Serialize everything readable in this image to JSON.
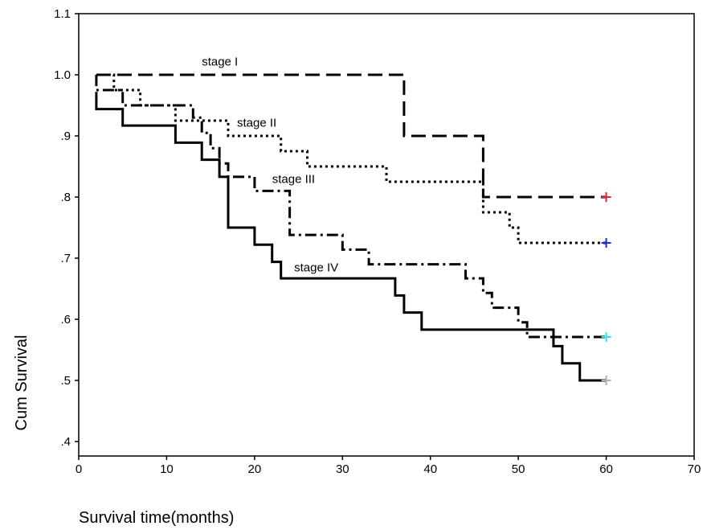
{
  "chart_data": {
    "type": "line",
    "step": true,
    "xlabel": "Survival time(months)",
    "ylabel": "Cum Survival",
    "xlim": [
      0,
      70
    ],
    "ylim": [
      0.4,
      1.1
    ],
    "x_ticks": [
      0,
      10,
      20,
      30,
      40,
      50,
      60,
      70
    ],
    "x_tick_labels": [
      "0",
      "10",
      "20",
      "30",
      "40",
      "50",
      "60",
      "70"
    ],
    "y_ticks": [
      0.4,
      0.5,
      0.6,
      0.7,
      0.8,
      0.9,
      1.0,
      1.1
    ],
    "y_tick_labels": [
      ".4",
      ".5",
      ".6",
      ".7",
      ".8",
      ".9",
      "1.0",
      "1.1"
    ],
    "grid": false,
    "legend": "none",
    "series": [
      {
        "name": "stage I",
        "style": "long-dash",
        "censor_color": "#e8232a",
        "points": [
          [
            2,
            1.0
          ],
          [
            37,
            1.0
          ],
          [
            37,
            0.9
          ],
          [
            46,
            0.9
          ],
          [
            46,
            0.8
          ],
          [
            60,
            0.8
          ]
        ]
      },
      {
        "name": "stage II",
        "style": "dotted",
        "censor_color": "#1f2fd0",
        "points": [
          [
            2,
            1.0
          ],
          [
            4,
            1.0
          ],
          [
            4,
            0.975
          ],
          [
            7,
            0.975
          ],
          [
            7,
            0.95
          ],
          [
            11,
            0.95
          ],
          [
            11,
            0.925
          ],
          [
            17,
            0.925
          ],
          [
            17,
            0.9
          ],
          [
            23,
            0.9
          ],
          [
            23,
            0.875
          ],
          [
            26,
            0.875
          ],
          [
            26,
            0.85
          ],
          [
            35,
            0.85
          ],
          [
            35,
            0.825
          ],
          [
            46,
            0.825
          ],
          [
            46,
            0.775
          ],
          [
            49,
            0.775
          ],
          [
            49,
            0.75
          ],
          [
            50,
            0.75
          ],
          [
            50,
            0.725
          ],
          [
            60,
            0.725
          ]
        ]
      },
      {
        "name": "stage III",
        "style": "dash-dot",
        "censor_color": "#34e4f0",
        "points": [
          [
            2,
            1.0
          ],
          [
            2,
            0.975
          ],
          [
            5,
            0.975
          ],
          [
            5,
            0.95
          ],
          [
            13,
            0.95
          ],
          [
            13,
            0.93
          ],
          [
            14,
            0.93
          ],
          [
            14,
            0.905
          ],
          [
            15,
            0.905
          ],
          [
            15,
            0.88
          ],
          [
            16,
            0.88
          ],
          [
            16,
            0.855
          ],
          [
            17,
            0.855
          ],
          [
            17,
            0.833
          ],
          [
            20,
            0.833
          ],
          [
            20,
            0.81
          ],
          [
            24,
            0.81
          ],
          [
            24,
            0.738
          ],
          [
            30,
            0.738
          ],
          [
            30,
            0.714
          ],
          [
            33,
            0.714
          ],
          [
            33,
            0.69
          ],
          [
            44,
            0.69
          ],
          [
            44,
            0.667
          ],
          [
            46,
            0.667
          ],
          [
            46,
            0.643
          ],
          [
            47,
            0.643
          ],
          [
            47,
            0.619
          ],
          [
            50,
            0.619
          ],
          [
            50,
            0.595
          ],
          [
            51,
            0.595
          ],
          [
            51,
            0.571
          ],
          [
            60,
            0.571
          ]
        ]
      },
      {
        "name": "stage IV",
        "style": "solid",
        "censor_color": "#b0b0b0",
        "points": [
          [
            2,
            0.972
          ],
          [
            2,
            0.944
          ],
          [
            5,
            0.944
          ],
          [
            5,
            0.917
          ],
          [
            11,
            0.917
          ],
          [
            11,
            0.889
          ],
          [
            14,
            0.889
          ],
          [
            14,
            0.861
          ],
          [
            16,
            0.861
          ],
          [
            16,
            0.833
          ],
          [
            17,
            0.833
          ],
          [
            17,
            0.806
          ],
          [
            17,
            0.778
          ],
          [
            17,
            0.75
          ],
          [
            20,
            0.75
          ],
          [
            20,
            0.722
          ],
          [
            22,
            0.722
          ],
          [
            22,
            0.694
          ],
          [
            23,
            0.694
          ],
          [
            23,
            0.667
          ],
          [
            36,
            0.667
          ],
          [
            36,
            0.639
          ],
          [
            37,
            0.639
          ],
          [
            37,
            0.611
          ],
          [
            39,
            0.611
          ],
          [
            39,
            0.583
          ],
          [
            54,
            0.583
          ],
          [
            54,
            0.556
          ],
          [
            55,
            0.556
          ],
          [
            55,
            0.528
          ],
          [
            57,
            0.528
          ],
          [
            57,
            0.5
          ],
          [
            60,
            0.5
          ]
        ]
      }
    ],
    "censor_marks": [
      {
        "series": "stage I",
        "x": 60,
        "y": 0.8
      },
      {
        "series": "stage II",
        "x": 60,
        "y": 0.725
      },
      {
        "series": "stage III",
        "x": 60,
        "y": 0.571
      },
      {
        "series": "stage IV",
        "x": 60,
        "y": 0.5
      }
    ]
  }
}
